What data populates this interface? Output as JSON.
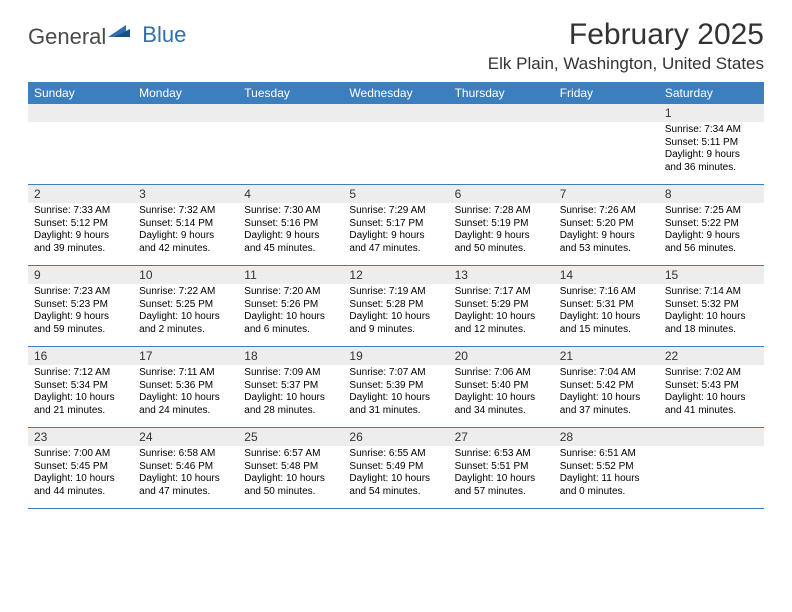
{
  "logo": {
    "word1": "General",
    "word2": "Blue"
  },
  "title": "February 2025",
  "location": "Elk Plain, Washington, United States",
  "header_bg": "#3b7fbf",
  "daynum_bg": "#ededed",
  "text_color": "#000000",
  "days": [
    "Sunday",
    "Monday",
    "Tuesday",
    "Wednesday",
    "Thursday",
    "Friday",
    "Saturday"
  ],
  "weeks": [
    [
      null,
      null,
      null,
      null,
      null,
      null,
      {
        "n": "1",
        "sunrise": "7:34 AM",
        "sunset": "5:11 PM",
        "daylight": "9 hours and 36 minutes."
      }
    ],
    [
      {
        "n": "2",
        "sunrise": "7:33 AM",
        "sunset": "5:12 PM",
        "daylight": "9 hours and 39 minutes."
      },
      {
        "n": "3",
        "sunrise": "7:32 AM",
        "sunset": "5:14 PM",
        "daylight": "9 hours and 42 minutes."
      },
      {
        "n": "4",
        "sunrise": "7:30 AM",
        "sunset": "5:16 PM",
        "daylight": "9 hours and 45 minutes."
      },
      {
        "n": "5",
        "sunrise": "7:29 AM",
        "sunset": "5:17 PM",
        "daylight": "9 hours and 47 minutes."
      },
      {
        "n": "6",
        "sunrise": "7:28 AM",
        "sunset": "5:19 PM",
        "daylight": "9 hours and 50 minutes."
      },
      {
        "n": "7",
        "sunrise": "7:26 AM",
        "sunset": "5:20 PM",
        "daylight": "9 hours and 53 minutes."
      },
      {
        "n": "8",
        "sunrise": "7:25 AM",
        "sunset": "5:22 PM",
        "daylight": "9 hours and 56 minutes."
      }
    ],
    [
      {
        "n": "9",
        "sunrise": "7:23 AM",
        "sunset": "5:23 PM",
        "daylight": "9 hours and 59 minutes."
      },
      {
        "n": "10",
        "sunrise": "7:22 AM",
        "sunset": "5:25 PM",
        "daylight": "10 hours and 2 minutes."
      },
      {
        "n": "11",
        "sunrise": "7:20 AM",
        "sunset": "5:26 PM",
        "daylight": "10 hours and 6 minutes."
      },
      {
        "n": "12",
        "sunrise": "7:19 AM",
        "sunset": "5:28 PM",
        "daylight": "10 hours and 9 minutes."
      },
      {
        "n": "13",
        "sunrise": "7:17 AM",
        "sunset": "5:29 PM",
        "daylight": "10 hours and 12 minutes."
      },
      {
        "n": "14",
        "sunrise": "7:16 AM",
        "sunset": "5:31 PM",
        "daylight": "10 hours and 15 minutes."
      },
      {
        "n": "15",
        "sunrise": "7:14 AM",
        "sunset": "5:32 PM",
        "daylight": "10 hours and 18 minutes."
      }
    ],
    [
      {
        "n": "16",
        "sunrise": "7:12 AM",
        "sunset": "5:34 PM",
        "daylight": "10 hours and 21 minutes."
      },
      {
        "n": "17",
        "sunrise": "7:11 AM",
        "sunset": "5:36 PM",
        "daylight": "10 hours and 24 minutes."
      },
      {
        "n": "18",
        "sunrise": "7:09 AM",
        "sunset": "5:37 PM",
        "daylight": "10 hours and 28 minutes."
      },
      {
        "n": "19",
        "sunrise": "7:07 AM",
        "sunset": "5:39 PM",
        "daylight": "10 hours and 31 minutes."
      },
      {
        "n": "20",
        "sunrise": "7:06 AM",
        "sunset": "5:40 PM",
        "daylight": "10 hours and 34 minutes."
      },
      {
        "n": "21",
        "sunrise": "7:04 AM",
        "sunset": "5:42 PM",
        "daylight": "10 hours and 37 minutes."
      },
      {
        "n": "22",
        "sunrise": "7:02 AM",
        "sunset": "5:43 PM",
        "daylight": "10 hours and 41 minutes."
      }
    ],
    [
      {
        "n": "23",
        "sunrise": "7:00 AM",
        "sunset": "5:45 PM",
        "daylight": "10 hours and 44 minutes."
      },
      {
        "n": "24",
        "sunrise": "6:58 AM",
        "sunset": "5:46 PM",
        "daylight": "10 hours and 47 minutes."
      },
      {
        "n": "25",
        "sunrise": "6:57 AM",
        "sunset": "5:48 PM",
        "daylight": "10 hours and 50 minutes."
      },
      {
        "n": "26",
        "sunrise": "6:55 AM",
        "sunset": "5:49 PM",
        "daylight": "10 hours and 54 minutes."
      },
      {
        "n": "27",
        "sunrise": "6:53 AM",
        "sunset": "5:51 PM",
        "daylight": "10 hours and 57 minutes."
      },
      {
        "n": "28",
        "sunrise": "6:51 AM",
        "sunset": "5:52 PM",
        "daylight": "11 hours and 0 minutes."
      },
      null
    ]
  ],
  "labels": {
    "sunrise": "Sunrise: ",
    "sunset": "Sunset: ",
    "daylight": "Daylight: "
  }
}
